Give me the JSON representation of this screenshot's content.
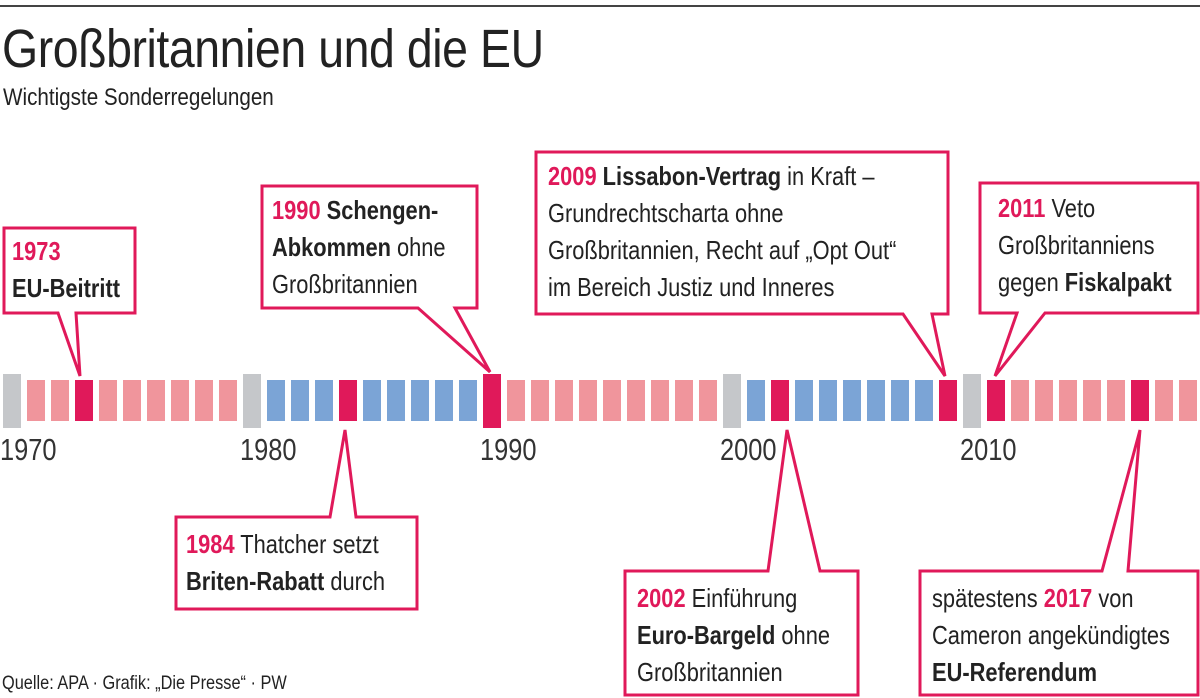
{
  "title": "Großbritannien und die EU",
  "subtitle": "Wichtigste Sonderregelungen",
  "footer": "Quelle: APA · Grafik: „Die Presse“ · PW",
  "colors": {
    "highlight": "#e0195a",
    "pink": "#f0959c",
    "blue": "#7ba4d6",
    "decade_marker": "#c5c7ca",
    "border": "#e0195a"
  },
  "timeline": {
    "start_year": 1970,
    "end_year": 2019,
    "decade_colors": {
      "1970": "pink",
      "1980": "blue",
      "1990": "pink",
      "2000": "blue",
      "2010": "pink"
    },
    "highlighted_years": [
      1973,
      1984,
      1990,
      2002,
      2009,
      2011,
      2017
    ]
  },
  "axis_labels": [
    "1970",
    "1980",
    "1990",
    "2000",
    "2010"
  ],
  "callouts": [
    {
      "year": 1973,
      "lines": [
        [
          {
            "t": "year",
            "v": "1973"
          }
        ],
        [
          {
            "t": "bold",
            "v": "EU-Beitritt"
          }
        ]
      ]
    },
    {
      "year": 1990,
      "lines": [
        [
          {
            "t": "year",
            "v": "1990"
          },
          {
            "t": "text",
            "v": " "
          },
          {
            "t": "bold",
            "v": "Schengen-"
          }
        ],
        [
          {
            "t": "bold",
            "v": "Abkommen"
          },
          {
            "t": "text",
            "v": " ohne"
          }
        ],
        [
          {
            "t": "text",
            "v": "Großbritannien"
          }
        ]
      ]
    },
    {
      "year": 2009,
      "lines": [
        [
          {
            "t": "year",
            "v": "2009"
          },
          {
            "t": "text",
            "v": " "
          },
          {
            "t": "bold",
            "v": "Lissabon-Vertrag"
          },
          {
            "t": "text",
            "v": " in Kraft –"
          }
        ],
        [
          {
            "t": "text",
            "v": "Grundrechtscharta ohne"
          }
        ],
        [
          {
            "t": "text",
            "v": "Großbritannien, Recht auf „Opt Out“"
          }
        ],
        [
          {
            "t": "text",
            "v": "im Bereich Justiz und Inneres"
          }
        ]
      ]
    },
    {
      "year": 2011,
      "lines": [
        [
          {
            "t": "year",
            "v": "2011"
          },
          {
            "t": "text",
            "v": " Veto"
          }
        ],
        [
          {
            "t": "text",
            "v": "Großbritanniens"
          }
        ],
        [
          {
            "t": "text",
            "v": "gegen "
          },
          {
            "t": "bold",
            "v": "Fiskalpakt"
          }
        ]
      ]
    },
    {
      "year": 1984,
      "lines": [
        [
          {
            "t": "year",
            "v": "1984"
          },
          {
            "t": "text",
            "v": " Thatcher setzt"
          }
        ],
        [
          {
            "t": "bold",
            "v": "Briten-Rabatt"
          },
          {
            "t": "text",
            "v": " durch"
          }
        ]
      ]
    },
    {
      "year": 2002,
      "lines": [
        [
          {
            "t": "year",
            "v": "2002"
          },
          {
            "t": "text",
            "v": " Einführung"
          }
        ],
        [
          {
            "t": "bold",
            "v": "Euro-Bargeld"
          },
          {
            "t": "text",
            "v": " ohne"
          }
        ],
        [
          {
            "t": "text",
            "v": "Großbritannien"
          }
        ]
      ]
    },
    {
      "year": 2017,
      "lines": [
        [
          {
            "t": "text",
            "v": "spätestens "
          },
          {
            "t": "year",
            "v": "2017"
          },
          {
            "t": "text",
            "v": " von"
          }
        ],
        [
          {
            "t": "text",
            "v": "Cameron angekündigtes"
          }
        ],
        [
          {
            "t": "bold",
            "v": "EU-Referendum"
          }
        ]
      ]
    }
  ]
}
